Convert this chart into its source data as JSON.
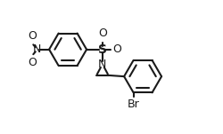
{
  "bg_color": "#ffffff",
  "line_color": "#1a1a1a",
  "line_width": 1.5,
  "text_color": "#1a1a1a",
  "font_size": 9,
  "fig_width": 2.51,
  "fig_height": 1.51,
  "dpi": 100,
  "xlim": [
    0,
    10
  ],
  "ylim": [
    0,
    6
  ]
}
